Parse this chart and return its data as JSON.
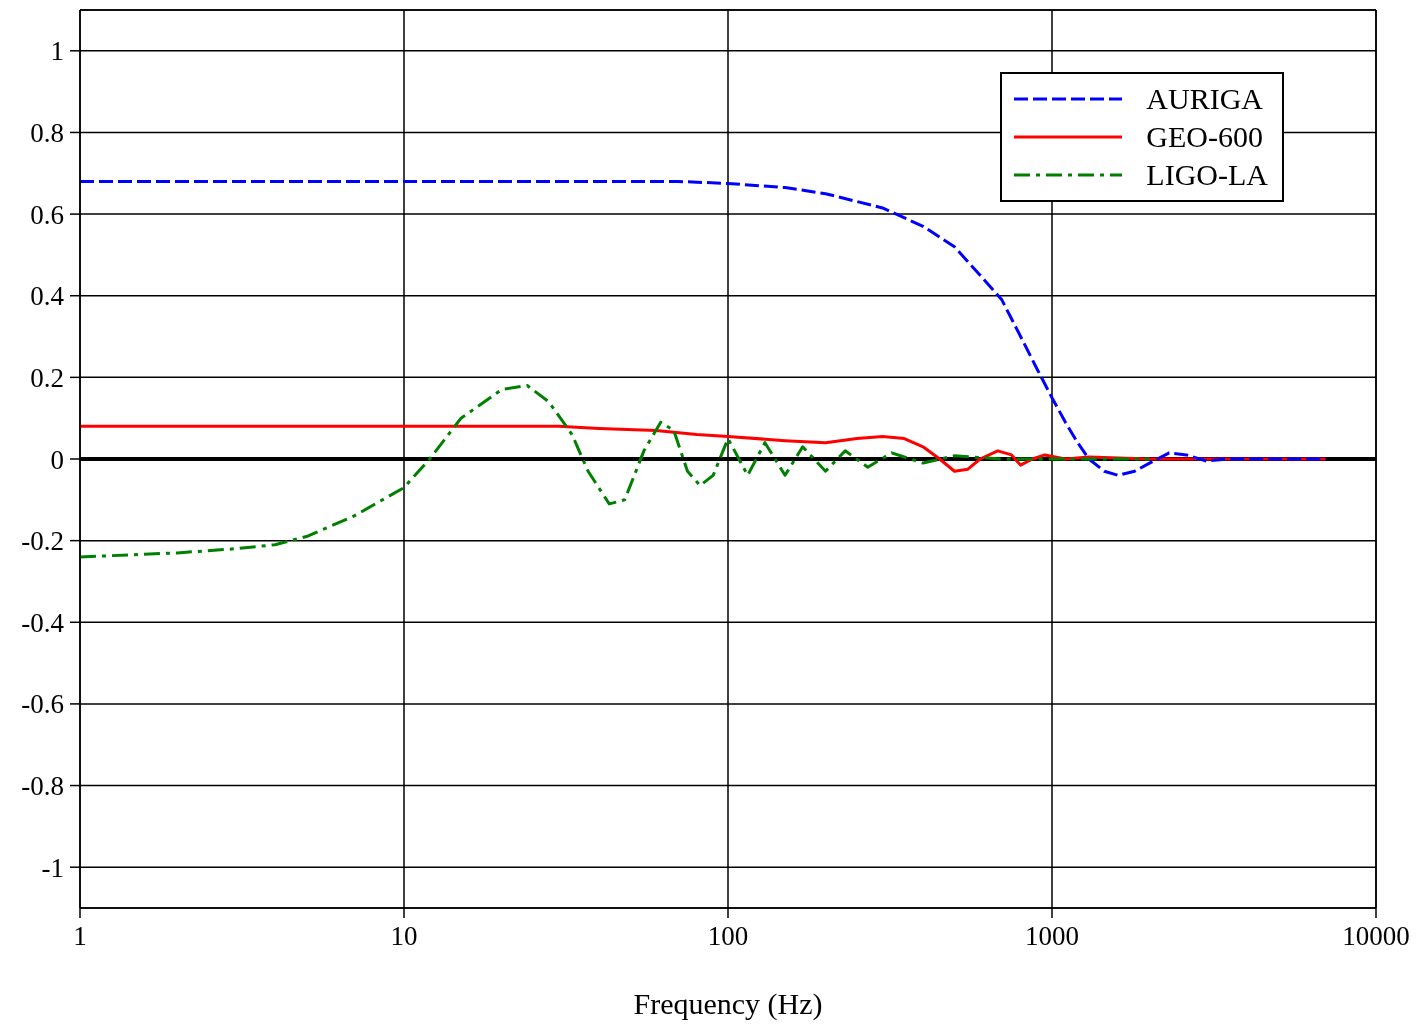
{
  "chart_data": {
    "type": "line",
    "xlabel": "Frequency (Hz)",
    "log": "x",
    "xlim": [
      1,
      10000
    ],
    "xticks": [
      1,
      10,
      100,
      1000,
      10000
    ],
    "ylim": [
      -1.1,
      1.1
    ],
    "yticks": [
      -1,
      -0.8,
      -0.6,
      -0.4,
      -0.2,
      0,
      0.2,
      0.4,
      0.6,
      0.8,
      1
    ],
    "grid": true,
    "legend": "top right",
    "marker": "none",
    "ref_lines": [
      {
        "axis": "y",
        "value": 0,
        "color": "#000000"
      }
    ],
    "series": [
      {
        "name": "AURIGA",
        "color": "#0000ff",
        "line_style": "dashed",
        "x": [
          1,
          3,
          10,
          30,
          70,
          100,
          150,
          200,
          300,
          400,
          500,
          600,
          700,
          800,
          900,
          1000,
          1100,
          1200,
          1300,
          1450,
          1600,
          1800,
          2000,
          2300,
          2600,
          3000,
          3500,
          5000,
          7000
        ],
        "values": [
          0.68,
          0.68,
          0.68,
          0.68,
          0.68,
          0.675,
          0.665,
          0.65,
          0.615,
          0.57,
          0.52,
          0.45,
          0.39,
          0.3,
          0.22,
          0.15,
          0.09,
          0.04,
          0.0,
          -0.03,
          -0.04,
          -0.03,
          -0.01,
          0.015,
          0.01,
          -0.005,
          0,
          0,
          0
        ]
      },
      {
        "name": "GEO-600",
        "color": "#ff0000",
        "line_style": "solid",
        "x": [
          1,
          10,
          30,
          40,
          60,
          80,
          100,
          150,
          200,
          250,
          300,
          350,
          400,
          450,
          500,
          550,
          600,
          680,
          750,
          800,
          870,
          950,
          1100,
          1300,
          2000,
          4000,
          7000
        ],
        "values": [
          0.08,
          0.08,
          0.08,
          0.075,
          0.07,
          0.06,
          0.055,
          0.045,
          0.04,
          0.05,
          0.055,
          0.05,
          0.03,
          0.0,
          -0.03,
          -0.025,
          0.0,
          0.02,
          0.01,
          -0.015,
          0,
          0.01,
          0,
          0.005,
          0,
          0,
          0
        ]
      },
      {
        "name": "LIGO-LA",
        "color": "#008000",
        "line_style": "dotted",
        "x": [
          1,
          2,
          3,
          4,
          5,
          7,
          10,
          12,
          15,
          20,
          24,
          28,
          33,
          37,
          43,
          48,
          55,
          62,
          68,
          75,
          82,
          90,
          100,
          115,
          130,
          150,
          170,
          200,
          230,
          270,
          320,
          400,
          500,
          700,
          1000,
          2000
        ],
        "values": [
          -0.24,
          -0.23,
          -0.22,
          -0.21,
          -0.19,
          -0.14,
          -0.07,
          0.0,
          0.1,
          0.17,
          0.18,
          0.14,
          0.06,
          -0.03,
          -0.11,
          -0.1,
          0.02,
          0.09,
          0.07,
          -0.03,
          -0.065,
          -0.04,
          0.05,
          -0.04,
          0.04,
          -0.04,
          0.03,
          -0.03,
          0.02,
          -0.02,
          0.015,
          -0.01,
          0.008,
          0,
          0,
          0
        ]
      }
    ]
  }
}
